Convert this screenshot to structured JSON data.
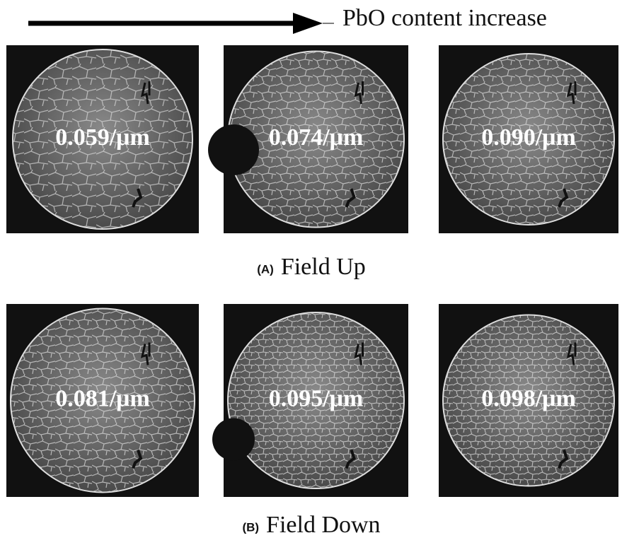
{
  "header": {
    "arrow_label": "PbO content increase"
  },
  "panels": [
    {
      "tag": "(A)",
      "title": "Field Up",
      "images": [
        {
          "label": "0.059/μm"
        },
        {
          "label": "0.074/μm"
        },
        {
          "label": "0.090/μm"
        }
      ]
    },
    {
      "tag": "(B)",
      "title": "Field Down",
      "images": [
        {
          "label": "0.081/μm"
        },
        {
          "label": "0.095/μm"
        },
        {
          "label": "0.098/μm"
        }
      ]
    }
  ]
}
